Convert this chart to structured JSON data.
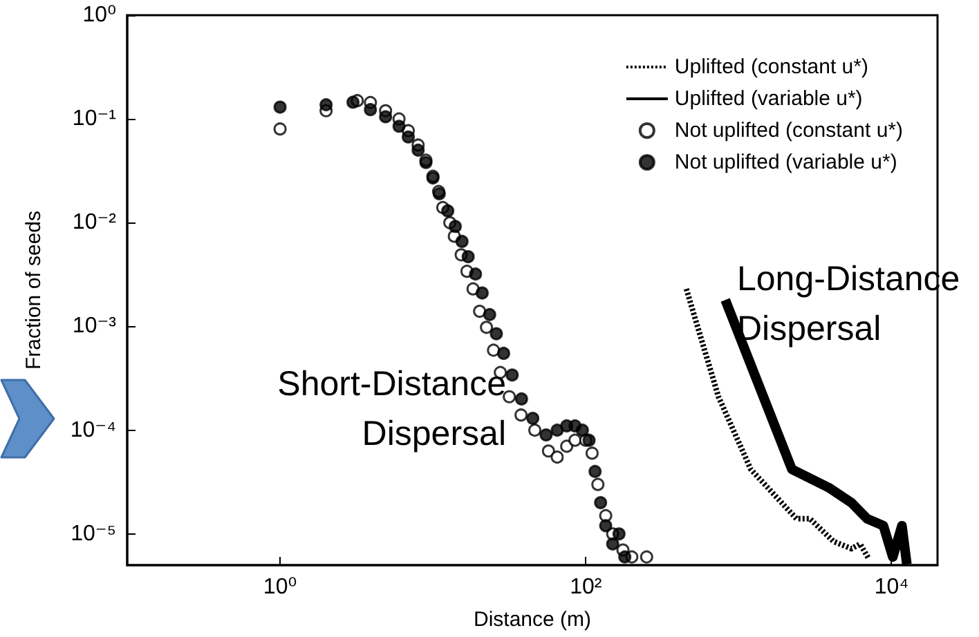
{
  "chart_data": {
    "type": "scatter",
    "xlabel": "Distance (m)",
    "ylabel": "Fraction of seeds",
    "log": "xy",
    "grid": false,
    "legend": "top right",
    "xlim": [
      0.1,
      20000
    ],
    "xticks": [
      {
        "value": 1,
        "label": "10⁰"
      },
      {
        "value": 100,
        "label": "10²"
      },
      {
        "value": 10000,
        "label": "10⁴"
      }
    ],
    "ylim": [
      5e-06,
      1
    ],
    "yticks": [
      {
        "value": 1e-05,
        "label": "10⁻⁵"
      },
      {
        "value": 0.0001,
        "label": "10⁻⁴"
      },
      {
        "value": 0.001,
        "label": "10⁻³"
      },
      {
        "value": 0.01,
        "label": "10⁻²"
      },
      {
        "value": 0.1,
        "label": "10⁻¹"
      },
      {
        "value": 1,
        "label": "10⁰"
      }
    ],
    "series": [
      {
        "name": "Uplifted (constant u*)",
        "type": "line",
        "line_style": "dotted",
        "marker": "none",
        "color": "#000000",
        "x": [
          455,
          738,
          1200,
          2390,
          2930,
          4160,
          5470,
          6230,
          7130
        ],
        "values": [
          0.0023,
          0.00021,
          4.2e-05,
          1.4e-05,
          1.4e-05,
          8.5e-06,
          7.2e-06,
          8e-06,
          5.7e-06
        ]
      },
      {
        "name": "Uplifted (variable u*)",
        "type": "line",
        "line_style": "solid",
        "marker": "none",
        "color": "#000000",
        "x": [
          818,
          2230,
          3880,
          5470,
          6930,
          8850,
          10200,
          11700,
          12600
        ],
        "values": [
          0.0018,
          4.2e-05,
          2.8e-05,
          2e-05,
          1.4e-05,
          1.2e-05,
          6e-06,
          1.2e-05,
          5.1e-06
        ]
      },
      {
        "name": "Not uplifted (constant u*)",
        "type": "scatter",
        "marker": "circle",
        "color": "#ffffff",
        "x": [
          1,
          2,
          3.2,
          3.9,
          4.9,
          6,
          6.9,
          8,
          9,
          10,
          10.9,
          11.6,
          12.9,
          13.8,
          15.3,
          16.7,
          18.3,
          20.2,
          22.4,
          24.9,
          27.6,
          31.6,
          37.7,
          46.4,
          57,
          65,
          75,
          85,
          100,
          110,
          120,
          135,
          150,
          175,
          200,
          250
        ],
        "values": [
          0.08,
          0.12,
          0.15,
          0.144,
          0.12,
          0.1,
          0.077,
          0.056,
          0.04,
          0.028,
          0.02,
          0.014,
          0.01,
          0.0074,
          0.0049,
          0.0034,
          0.0023,
          0.0014,
          0.00098,
          0.00059,
          0.00036,
          0.00021,
          0.00014,
          0.0001,
          6.3e-05,
          5.5e-05,
          7e-05,
          8e-05,
          8e-05,
          6e-05,
          3e-05,
          1.5e-05,
          1e-05,
          7e-06,
          6e-06,
          6e-06
        ]
      },
      {
        "name": "Not uplifted (variable u*)",
        "type": "scatter",
        "marker": "circle",
        "color": "#000000",
        "x": [
          1,
          2,
          3,
          3.9,
          4.9,
          6,
          6.9,
          8,
          9,
          10,
          11,
          12.5,
          14,
          15.5,
          17,
          19,
          21,
          23.5,
          26,
          29,
          33,
          38,
          45,
          55,
          65,
          75,
          85,
          95,
          105,
          115,
          125,
          135,
          150,
          165,
          180
        ],
        "values": [
          0.13,
          0.137,
          0.145,
          0.123,
          0.105,
          0.085,
          0.067,
          0.05,
          0.038,
          0.027,
          0.019,
          0.013,
          0.0092,
          0.0066,
          0.0047,
          0.0032,
          0.0021,
          0.0013,
          0.00085,
          0.00055,
          0.00034,
          0.0002,
          0.00013,
          9e-05,
          0.0001,
          0.00011,
          0.00011,
          0.0001,
          8e-05,
          4e-05,
          2e-05,
          1.2e-05,
          8e-06,
          1e-05,
          6e-06
        ]
      }
    ],
    "annotations": [
      "Short-Distance\nDispersal",
      "Long-Distance\nDispersal"
    ]
  }
}
